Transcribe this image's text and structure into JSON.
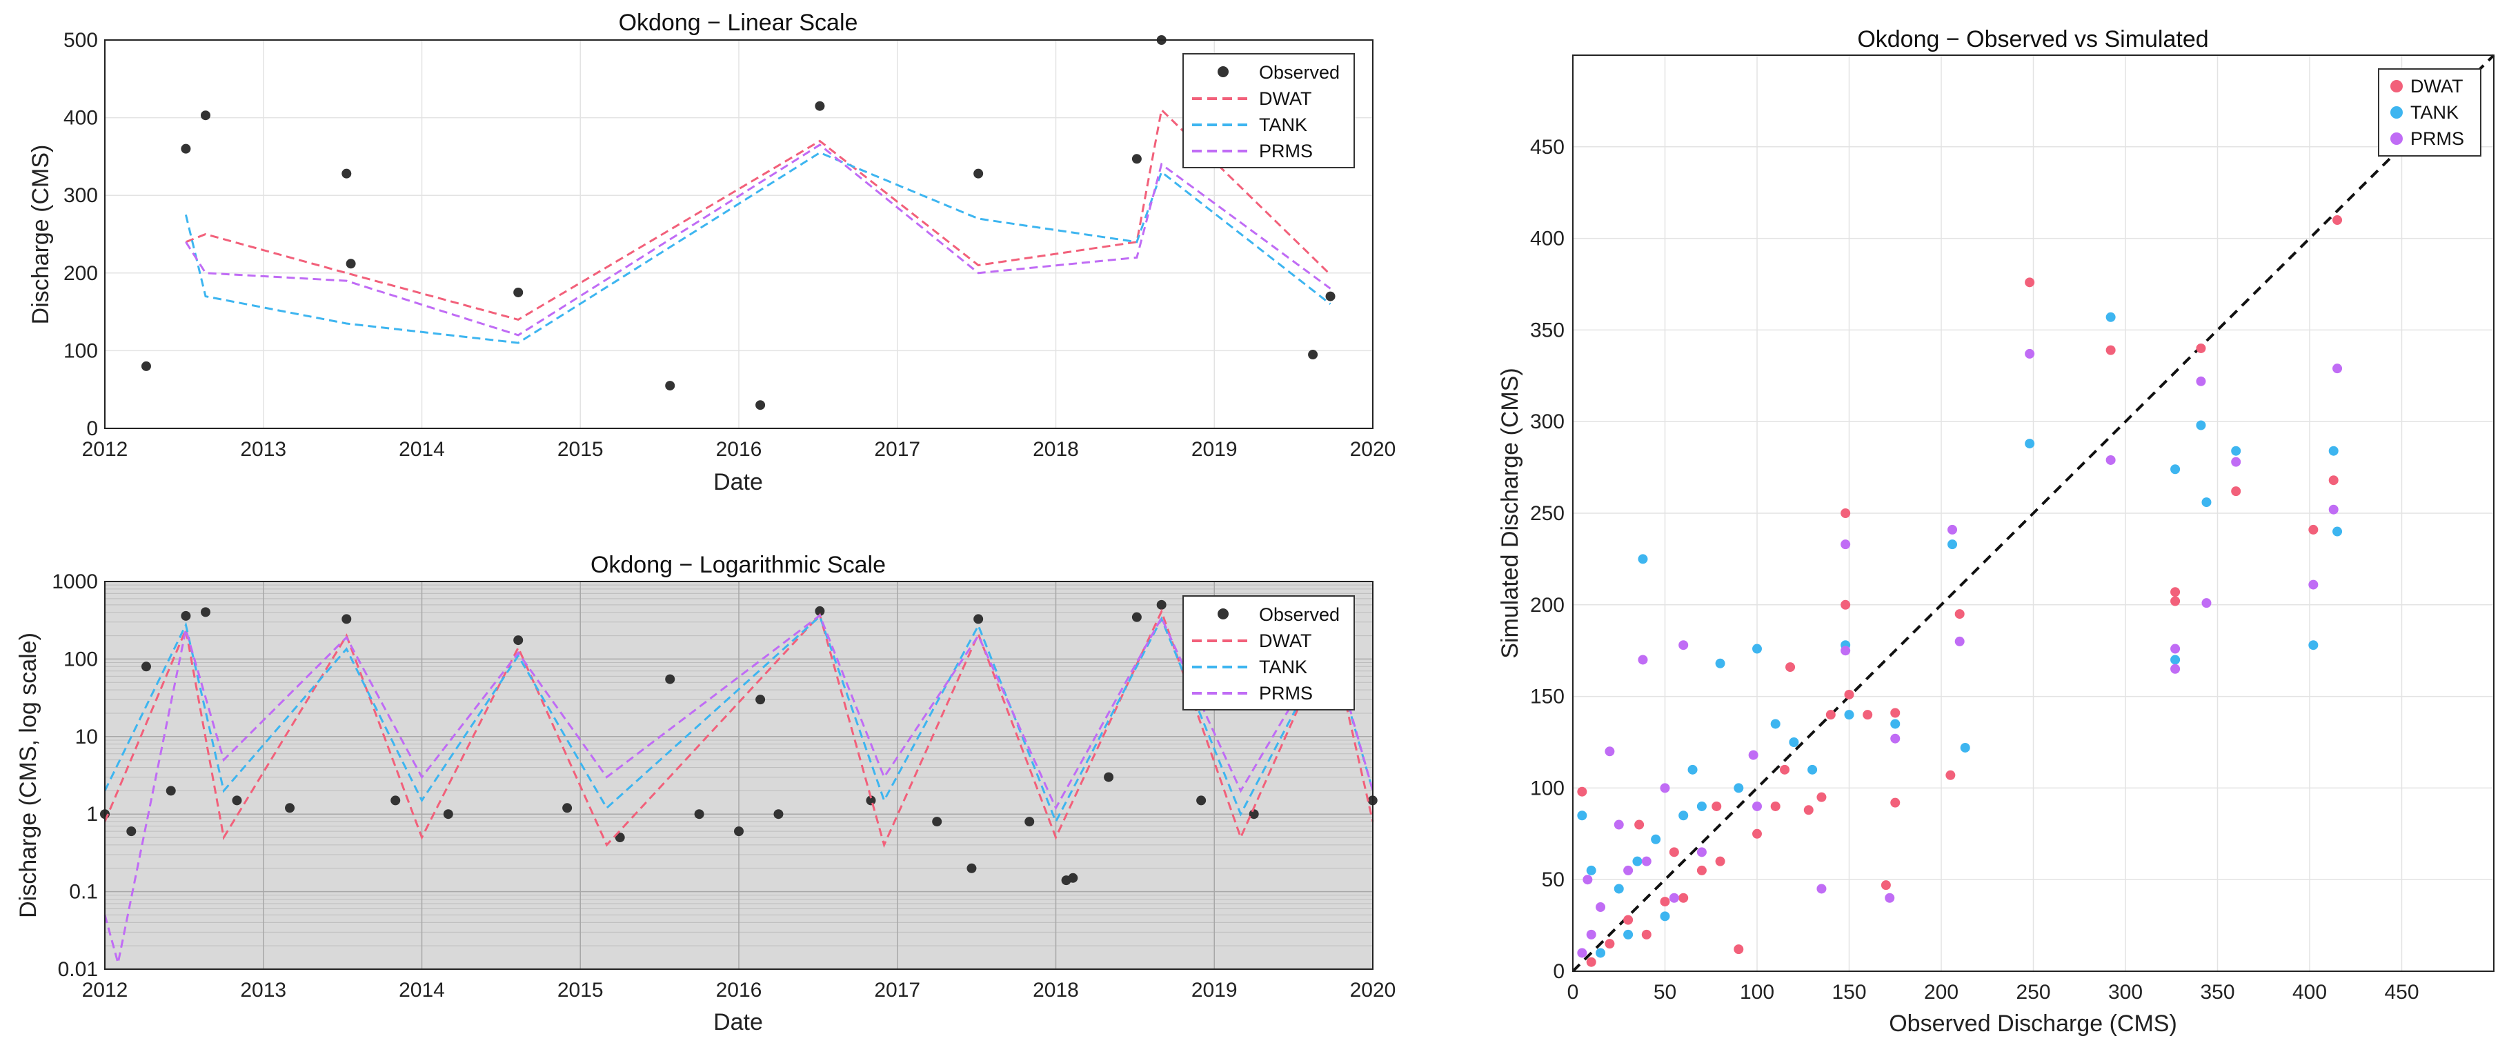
{
  "chart_data": [
    {
      "id": "linear",
      "type": "line",
      "title": "Okdong − Linear Scale",
      "xlabel": "Date",
      "ylabel": "Discharge (CMS)",
      "xlim": [
        "2012",
        "2020"
      ],
      "ylim": [
        0,
        500
      ],
      "yscale": "linear",
      "x_ticks": [
        "2012",
        "2013",
        "2014",
        "2015",
        "2016",
        "2017",
        "2018",
        "2019",
        "2020"
      ],
      "y_ticks": [
        "0",
        "100",
        "200",
        "300",
        "400",
        "500"
      ],
      "grid": true,
      "legend_position": "top-right",
      "legend": [
        "Observed",
        "DWAT",
        "TANK",
        "PRMS"
      ],
      "series": [
        {
          "name": "Observed",
          "style": "markers",
          "color": "#333333",
          "x": [
            "2012-04-05",
            "2012-07-05",
            "2012-08-20",
            "2013-07-10",
            "2013-07-20",
            "2014-08-10",
            "2015-07-25",
            "2016-02-20",
            "2016-07-05",
            "2017-07-05",
            "2018-07-05",
            "2018-09-01",
            "2019-08-15",
            "2019-09-25"
          ],
          "y": [
            80,
            360,
            403,
            328,
            212,
            175,
            55,
            30,
            415,
            328,
            347,
            500,
            95,
            170
          ]
        },
        {
          "name": "DWAT",
          "style": "dashed",
          "color": "#F2607A",
          "x": [
            "2012-07-05",
            "2012-08-20",
            "2013-07-10",
            "2014-08-10",
            "2016-07-05",
            "2017-07-05",
            "2018-07-05",
            "2018-09-01",
            "2019-09-25"
          ],
          "y": [
            240,
            250,
            200,
            140,
            370,
            210,
            240,
            410,
            198
          ]
        },
        {
          "name": "TANK",
          "style": "dashed",
          "color": "#3DB5F0",
          "x": [
            "2012-07-05",
            "2012-08-20",
            "2013-07-10",
            "2014-08-10",
            "2016-07-05",
            "2017-07-05",
            "2018-07-05",
            "2018-09-01",
            "2019-09-25"
          ],
          "y": [
            275,
            170,
            135,
            110,
            355,
            270,
            240,
            330,
            160
          ]
        },
        {
          "name": "PRMS",
          "style": "dashed",
          "color": "#C06CF5",
          "x": [
            "2012-07-05",
            "2012-08-20",
            "2013-07-10",
            "2014-08-10",
            "2016-07-05",
            "2017-07-05",
            "2018-07-05",
            "2018-09-01",
            "2019-09-25"
          ],
          "y": [
            240,
            200,
            190,
            120,
            365,
            200,
            220,
            340,
            180
          ]
        }
      ]
    },
    {
      "id": "log",
      "type": "line",
      "title": "Okdong − Logarithmic Scale",
      "xlabel": "Date",
      "ylabel": "Discharge (CMS, log scale)",
      "xlim": [
        "2012",
        "2020"
      ],
      "ylim": [
        0.01,
        1000
      ],
      "yscale": "log",
      "x_ticks": [
        "2012",
        "2013",
        "2014",
        "2015",
        "2016",
        "2017",
        "2018",
        "2019",
        "2020"
      ],
      "y_ticks": [
        "0.01",
        "0.1",
        "1",
        "10",
        "100",
        "1000"
      ],
      "grid": true,
      "legend_position": "top-right",
      "legend": [
        "Observed",
        "DWAT",
        "TANK",
        "PRMS"
      ],
      "series": [
        {
          "name": "Observed",
          "style": "markers",
          "color": "#333333",
          "x": [
            "2012-01-01",
            "2012-03-01",
            "2012-04-05",
            "2012-06-01",
            "2012-07-05",
            "2012-08-20",
            "2012-11-01",
            "2013-03-01",
            "2013-07-10",
            "2013-11-01",
            "2014-03-01",
            "2014-08-10",
            "2014-12-01",
            "2015-04-01",
            "2015-07-25",
            "2015-10-01",
            "2016-01-01",
            "2016-02-20",
            "2016-04-01",
            "2016-07-05",
            "2016-11-01",
            "2017-04-01",
            "2017-06-20",
            "2017-07-05",
            "2017-11-01",
            "2018-01-25",
            "2018-02-10",
            "2018-05-01",
            "2018-07-05",
            "2018-09-01",
            "2018-12-01",
            "2019-04-01",
            "2019-08-15",
            "2019-09-25",
            "2019-12-31"
          ],
          "y": [
            1.0,
            0.6,
            80,
            2,
            360,
            403,
            1.5,
            1.2,
            328,
            1.5,
            1.0,
            175,
            1.2,
            0.5,
            55,
            1.0,
            0.6,
            30,
            1.0,
            415,
            1.5,
            0.8,
            0.2,
            328,
            0.8,
            0.14,
            0.15,
            3,
            347,
            500,
            1.5,
            1.0,
            95,
            170,
            1.5
          ]
        },
        {
          "name": "DWAT",
          "style": "dashed",
          "color": "#F2607A",
          "x": [
            "2012-01-01",
            "2012-07-05",
            "2012-10-01",
            "2013-07-10",
            "2014-01-01",
            "2014-08-10",
            "2015-03-01",
            "2016-07-05",
            "2016-12-01",
            "2017-07-05",
            "2018-01-01",
            "2018-09-01",
            "2019-03-01",
            "2019-09-25",
            "2020-01-01"
          ],
          "y": [
            0.8,
            240,
            0.5,
            200,
            0.5,
            140,
            0.4,
            370,
            0.4,
            210,
            0.5,
            410,
            0.5,
            198,
            0.8
          ]
        },
        {
          "name": "TANK",
          "style": "dashed",
          "color": "#3DB5F0",
          "x": [
            "2012-01-01",
            "2012-07-05",
            "2012-10-01",
            "2013-07-10",
            "2014-01-01",
            "2014-08-10",
            "2015-03-01",
            "2016-07-05",
            "2016-12-01",
            "2017-07-05",
            "2018-01-01",
            "2018-09-01",
            "2019-03-01",
            "2019-09-25",
            "2020-01-01"
          ],
          "y": [
            2.0,
            275,
            2,
            135,
            1.5,
            110,
            1.2,
            355,
            1.5,
            270,
            0.8,
            330,
            1,
            160,
            2
          ]
        },
        {
          "name": "PRMS",
          "style": "dashed",
          "color": "#C06CF5",
          "x": [
            "2012-01-01",
            "2012-02-01",
            "2012-07-05",
            "2012-10-01",
            "2013-07-10",
            "2014-01-01",
            "2014-08-10",
            "2015-03-01",
            "2016-07-05",
            "2016-12-01",
            "2017-07-05",
            "2018-01-01",
            "2018-09-01",
            "2019-03-01",
            "2019-09-25",
            "2020-01-01"
          ],
          "y": [
            0.05,
            0.012,
            240,
            5,
            190,
            3,
            120,
            3,
            365,
            3,
            200,
            1.2,
            340,
            2,
            180,
            2
          ]
        }
      ]
    },
    {
      "id": "scatter",
      "type": "scatter",
      "title": "Okdong − Observed vs Simulated",
      "xlabel": "Observed Discharge (CMS)",
      "ylabel": "Simulated Discharge (CMS)",
      "xlim": [
        0,
        500
      ],
      "ylim": [
        0,
        500
      ],
      "x_ticks": [
        "0",
        "50",
        "100",
        "150",
        "200",
        "250",
        "300",
        "350",
        "400",
        "450"
      ],
      "y_ticks": [
        "0",
        "50",
        "100",
        "150",
        "200",
        "250",
        "300",
        "350",
        "400",
        "450"
      ],
      "grid": true,
      "reference_line": "1:1",
      "legend_position": "top-right",
      "legend": [
        "DWAT",
        "TANK",
        "PRMS"
      ],
      "series": [
        {
          "name": "DWAT",
          "color": "#F2607A",
          "points": [
            [
              415,
              410
            ],
            [
              248,
              376
            ],
            [
              292,
              339
            ],
            [
              341,
              340
            ],
            [
              360,
              262
            ],
            [
              402,
              241
            ],
            [
              413,
              268
            ],
            [
              327,
              207
            ],
            [
              327,
              202
            ],
            [
              148,
              250
            ],
            [
              148,
              200
            ],
            [
              205,
              107
            ],
            [
              210,
              195
            ],
            [
              175,
              141
            ],
            [
              175,
              92
            ],
            [
              118,
              166
            ],
            [
              150,
              151
            ],
            [
              170,
              47
            ],
            [
              135,
              95
            ],
            [
              100,
              75
            ],
            [
              80,
              60
            ],
            [
              60,
              40
            ],
            [
              90,
              12
            ],
            [
              40,
              20
            ],
            [
              5,
              98
            ],
            [
              30,
              28
            ],
            [
              50,
              38
            ],
            [
              20,
              15
            ],
            [
              10,
              5
            ],
            [
              70,
              55
            ],
            [
              110,
              90
            ],
            [
              128,
              88
            ],
            [
              160,
              140
            ],
            [
              36,
              80
            ],
            [
              55,
              65
            ],
            [
              78,
              90
            ],
            [
              115,
              110
            ],
            [
              140,
              140
            ]
          ]
        },
        {
          "name": "TANK",
          "color": "#3DB5F0",
          "points": [
            [
              415,
              240
            ],
            [
              292,
              357
            ],
            [
              248,
              288
            ],
            [
              341,
              298
            ],
            [
              327,
              274
            ],
            [
              402,
              178
            ],
            [
              413,
              284
            ],
            [
              360,
              284
            ],
            [
              327,
              170
            ],
            [
              344,
              256
            ],
            [
              206,
              233
            ],
            [
              213,
              122
            ],
            [
              175,
              135
            ],
            [
              148,
              178
            ],
            [
              100,
              176
            ],
            [
              38,
              225
            ],
            [
              80,
              168
            ],
            [
              120,
              125
            ],
            [
              60,
              85
            ],
            [
              35,
              60
            ],
            [
              10,
              55
            ],
            [
              25,
              45
            ],
            [
              50,
              30
            ],
            [
              15,
              10
            ],
            [
              90,
              100
            ],
            [
              70,
              90
            ],
            [
              130,
              110
            ],
            [
              150,
              140
            ],
            [
              30,
              20
            ],
            [
              5,
              85
            ],
            [
              45,
              72
            ],
            [
              110,
              135
            ],
            [
              65,
              110
            ]
          ]
        },
        {
          "name": "PRMS",
          "color": "#C06CF5",
          "points": [
            [
              415,
              329
            ],
            [
              292,
              279
            ],
            [
              248,
              337
            ],
            [
              341,
              322
            ],
            [
              327,
              176
            ],
            [
              327,
              165
            ],
            [
              344,
              201
            ],
            [
              360,
              278
            ],
            [
              402,
              211
            ],
            [
              413,
              252
            ],
            [
              206,
              241
            ],
            [
              210,
              180
            ],
            [
              175,
              127
            ],
            [
              172,
              40
            ],
            [
              148,
              233
            ],
            [
              148,
              175
            ],
            [
              135,
              45
            ],
            [
              98,
              118
            ],
            [
              60,
              178
            ],
            [
              38,
              170
            ],
            [
              20,
              120
            ],
            [
              25,
              80
            ],
            [
              30,
              55
            ],
            [
              15,
              35
            ],
            [
              10,
              20
            ],
            [
              5,
              10
            ],
            [
              50,
              100
            ],
            [
              40,
              60
            ],
            [
              70,
              65
            ],
            [
              100,
              90
            ],
            [
              55,
              40
            ],
            [
              8,
              50
            ]
          ]
        }
      ]
    }
  ]
}
